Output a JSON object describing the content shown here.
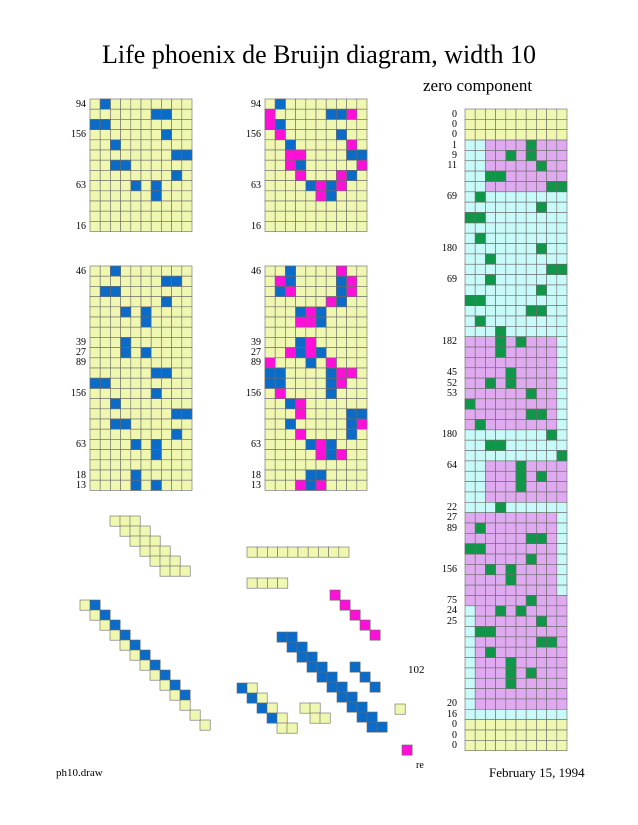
{
  "title": "Life phoenix de Bruijn diagram, width 10",
  "subtitle": "zero component",
  "footer_left": "ph10.draw",
  "footer_right": "February 15, 1994",
  "marker_label": "re",
  "label_102": "102",
  "colors": {
    "yellow_cell": "#f0f7b0",
    "cyan_cell": "#c8fafa",
    "purple_cell": "#dfaaf0",
    "blue": "#0a6cc8",
    "magenta": "#ff10d8",
    "green": "#109648",
    "grid_line": "#6a6a6a"
  },
  "panel_small_left": {
    "row_labels": [
      {
        "row": 0,
        "text": "94"
      },
      {
        "row": 3,
        "text": "156"
      },
      {
        "row": 8,
        "text": "63"
      },
      {
        "row": 12,
        "text": "16"
      }
    ]
  },
  "panel_small_right": {
    "row_labels": [
      {
        "row": 0,
        "text": "94"
      },
      {
        "row": 3,
        "text": "156"
      },
      {
        "row": 8,
        "text": "63"
      },
      {
        "row": 12,
        "text": "16"
      }
    ]
  },
  "panel_tall_left": {
    "row_labels": [
      {
        "row": 0,
        "text": "46"
      },
      {
        "row": 7,
        "text": "39"
      },
      {
        "row": 8,
        "text": "27"
      },
      {
        "row": 9,
        "text": "89"
      },
      {
        "row": 12,
        "text": "156"
      },
      {
        "row": 17,
        "text": "63"
      },
      {
        "row": 20,
        "text": "18"
      },
      {
        "row": 21,
        "text": "13"
      }
    ]
  },
  "panel_tall_right": {
    "row_labels": [
      {
        "row": 0,
        "text": "46"
      },
      {
        "row": 7,
        "text": "39"
      },
      {
        "row": 8,
        "text": "27"
      },
      {
        "row": 9,
        "text": "89"
      },
      {
        "row": 12,
        "text": "156"
      },
      {
        "row": 17,
        "text": "63"
      },
      {
        "row": 20,
        "text": "18"
      },
      {
        "row": 21,
        "text": "13"
      }
    ]
  },
  "panel_column": {
    "row_labels": [
      {
        "row": 0,
        "text": "0"
      },
      {
        "row": 1,
        "text": "0"
      },
      {
        "row": 2,
        "text": "0"
      },
      {
        "row": 3,
        "text": "1"
      },
      {
        "row": 4,
        "text": "9"
      },
      {
        "row": 5,
        "text": "11"
      },
      {
        "row": 8,
        "text": "69"
      },
      {
        "row": 13,
        "text": "180"
      },
      {
        "row": 16,
        "text": "69"
      },
      {
        "row": 22,
        "text": "182"
      },
      {
        "row": 25,
        "text": "45"
      },
      {
        "row": 26,
        "text": "52"
      },
      {
        "row": 27,
        "text": "53"
      },
      {
        "row": 31,
        "text": "180"
      },
      {
        "row": 34,
        "text": "64"
      },
      {
        "row": 38,
        "text": "22"
      },
      {
        "row": 39,
        "text": "27"
      },
      {
        "row": 40,
        "text": "89"
      },
      {
        "row": 44,
        "text": "156"
      },
      {
        "row": 47,
        "text": "75"
      },
      {
        "row": 48,
        "text": "24"
      },
      {
        "row": 49,
        "text": "25"
      },
      {
        "row": 57,
        "text": "20"
      },
      {
        "row": 58,
        "text": "16"
      },
      {
        "row": 59,
        "text": "0"
      },
      {
        "row": 60,
        "text": "0"
      },
      {
        "row": 61,
        "text": "0"
      }
    ]
  }
}
